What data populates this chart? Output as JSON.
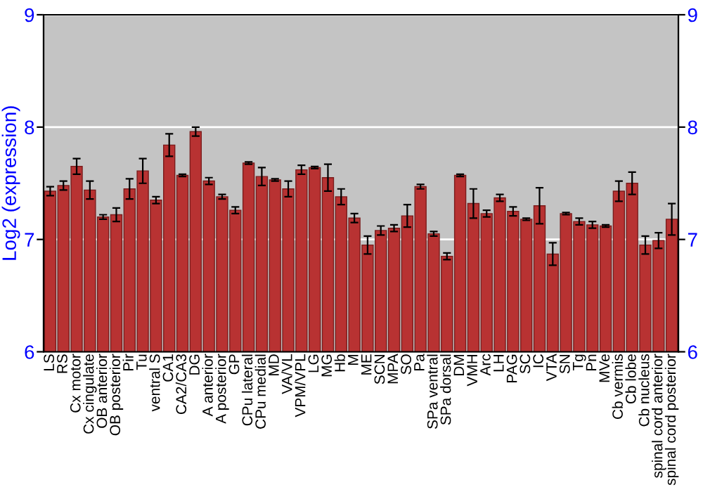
{
  "chart_data": {
    "type": "bar",
    "ylabel": "Log2 (expression)",
    "categories": [
      "LS",
      "RS",
      "Cx motor",
      "Cx cingulate",
      "OB anterior",
      "OB posterior",
      "Pir",
      "Tu",
      "ventral S",
      "CA1",
      "CA2/CA3",
      "DG",
      "A anterior",
      "A posterior",
      "GP",
      "CPu lateral",
      "CPu medial",
      "MD",
      "VA/VL",
      "VPM/VPL",
      "LG",
      "MG",
      "Hb",
      "M",
      "ME",
      "SCN",
      "MPA",
      "SO",
      "Pa",
      "SPa ventral",
      "SPa dorsal",
      "DM",
      "VMH",
      "Arc",
      "LH",
      "PAG",
      "SC",
      "IC",
      "VTA",
      "SN",
      "Tg",
      "Pn",
      "MVe",
      "Cb vermis",
      "Cb lobe",
      "Cb nucleus",
      "spinal cord anterior",
      "spinal cord posterior"
    ],
    "values": [
      7.43,
      7.48,
      7.65,
      7.44,
      7.2,
      7.22,
      7.45,
      7.61,
      7.35,
      7.84,
      7.57,
      7.96,
      7.52,
      7.38,
      7.26,
      7.68,
      7.56,
      7.53,
      7.45,
      7.62,
      7.64,
      7.55,
      7.38,
      7.19,
      6.95,
      7.08,
      7.1,
      7.21,
      7.47,
      7.05,
      6.85,
      7.57,
      7.32,
      7.23,
      7.37,
      7.25,
      7.18,
      7.3,
      6.87,
      7.23,
      7.16,
      7.13,
      7.12,
      7.43,
      7.5,
      6.95,
      6.99,
      7.18
    ],
    "errors": [
      0.04,
      0.04,
      0.07,
      0.08,
      0.02,
      0.06,
      0.09,
      0.11,
      0.03,
      0.1,
      0.01,
      0.04,
      0.03,
      0.02,
      0.03,
      0.01,
      0.08,
      0.01,
      0.07,
      0.04,
      0.01,
      0.12,
      0.07,
      0.04,
      0.08,
      0.04,
      0.03,
      0.1,
      0.02,
      0.02,
      0.03,
      0.01,
      0.13,
      0.03,
      0.03,
      0.04,
      0.01,
      0.16,
      0.1,
      0.01,
      0.03,
      0.03,
      0.01,
      0.09,
      0.1,
      0.08,
      0.07,
      0.14
    ],
    "color": "#b83232",
    "ylim": [
      6,
      9
    ],
    "yticks": [
      6,
      7,
      8,
      9
    ],
    "y2lim": [
      6,
      9
    ],
    "y2ticks": [
      6,
      7,
      8,
      9
    ],
    "grid": "y",
    "legend": false
  }
}
